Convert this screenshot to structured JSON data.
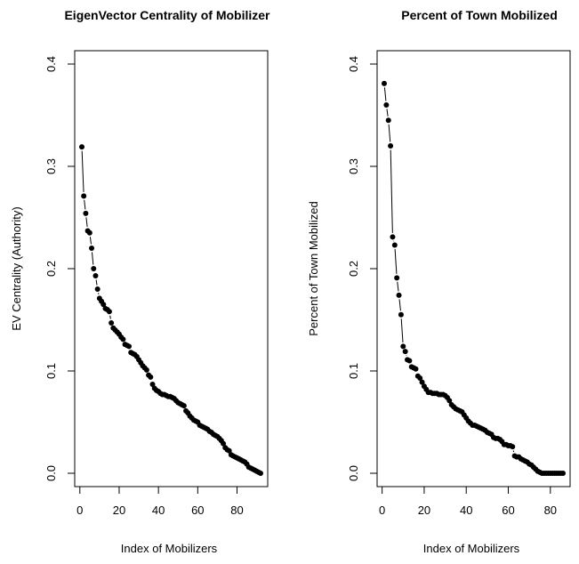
{
  "chart_data": [
    {
      "type": "line",
      "title": "EigenVector Centrality of Mobilizer",
      "xlabel": "Index of Mobilizers",
      "ylabel": "EV Centrality (Authority)",
      "xlim": [
        1,
        92
      ],
      "ylim": [
        0,
        0.4
      ],
      "xticks": [
        0,
        20,
        40,
        60,
        80
      ],
      "yticks": [
        0.0,
        0.1,
        0.2,
        0.3,
        0.4
      ],
      "xtick_labels": [
        "0",
        "20",
        "40",
        "60",
        "80"
      ],
      "ytick_labels": [
        "0.0",
        "0.1",
        "0.2",
        "0.3",
        "0.4"
      ],
      "grid": false,
      "marker": "filled-circle",
      "series": [
        {
          "values": [
            0.319,
            0.271,
            0.254,
            0.237,
            0.235,
            0.22,
            0.2,
            0.193,
            0.18,
            0.171,
            0.168,
            0.165,
            0.161,
            0.16,
            0.158,
            0.147,
            0.142,
            0.14,
            0.138,
            0.136,
            0.133,
            0.131,
            0.126,
            0.125,
            0.124,
            0.118,
            0.117,
            0.116,
            0.114,
            0.111,
            0.108,
            0.105,
            0.103,
            0.101,
            0.096,
            0.094,
            0.087,
            0.083,
            0.081,
            0.08,
            0.078,
            0.077,
            0.077,
            0.076,
            0.075,
            0.075,
            0.074,
            0.073,
            0.071,
            0.069,
            0.068,
            0.067,
            0.066,
            0.061,
            0.059,
            0.056,
            0.054,
            0.052,
            0.051,
            0.05,
            0.047,
            0.046,
            0.045,
            0.044,
            0.043,
            0.041,
            0.04,
            0.038,
            0.037,
            0.036,
            0.034,
            0.032,
            0.029,
            0.025,
            0.023,
            0.022,
            0.018,
            0.017,
            0.016,
            0.015,
            0.014,
            0.013,
            0.012,
            0.011,
            0.009,
            0.006,
            0.005,
            0.004,
            0.003,
            0.002,
            0.001,
            0.0
          ]
        }
      ]
    },
    {
      "type": "line",
      "title": "Percent of Town Mobilized",
      "xlabel": "Index of Mobilizers",
      "ylabel": "Percent of Town Mobilized",
      "xlim": [
        1,
        86
      ],
      "ylim": [
        0,
        0.4
      ],
      "xticks": [
        0,
        20,
        40,
        60,
        80
      ],
      "yticks": [
        0.0,
        0.1,
        0.2,
        0.3,
        0.4
      ],
      "xtick_labels": [
        "0",
        "20",
        "40",
        "60",
        "80"
      ],
      "ytick_labels": [
        "0.0",
        "0.1",
        "0.2",
        "0.3",
        "0.4"
      ],
      "grid": false,
      "marker": "filled-circle",
      "series": [
        {
          "values": [
            0.381,
            0.36,
            0.345,
            0.32,
            0.231,
            0.223,
            0.191,
            0.174,
            0.155,
            0.124,
            0.119,
            0.111,
            0.11,
            0.104,
            0.103,
            0.102,
            0.095,
            0.093,
            0.089,
            0.085,
            0.082,
            0.079,
            0.079,
            0.078,
            0.078,
            0.078,
            0.077,
            0.077,
            0.077,
            0.076,
            0.074,
            0.071,
            0.067,
            0.065,
            0.063,
            0.062,
            0.061,
            0.06,
            0.057,
            0.054,
            0.051,
            0.049,
            0.047,
            0.047,
            0.046,
            0.045,
            0.044,
            0.043,
            0.042,
            0.04,
            0.039,
            0.038,
            0.035,
            0.034,
            0.034,
            0.033,
            0.031,
            0.028,
            0.028,
            0.027,
            0.027,
            0.026,
            0.017,
            0.016,
            0.016,
            0.014,
            0.013,
            0.012,
            0.011,
            0.009,
            0.008,
            0.006,
            0.004,
            0.002,
            0.001,
            0.0,
            0.0,
            0.0,
            0.0,
            0.0,
            0.0,
            0.0,
            0.0,
            0.0,
            0.0,
            0.0
          ]
        }
      ]
    }
  ]
}
